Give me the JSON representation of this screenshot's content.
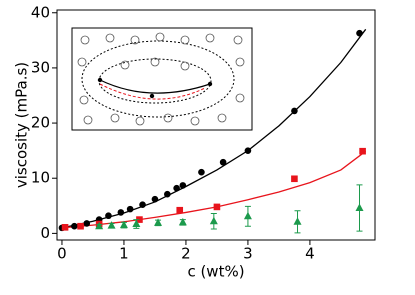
{
  "chart_data": {
    "type": "scatter",
    "x_label": "c (wt%)",
    "y_label": "viscosity (mPa.s)",
    "xlim": [
      -0.08,
      5.05
    ],
    "ylim": [
      -1.2,
      40.5
    ],
    "xticks": [
      0,
      1,
      2,
      3,
      4
    ],
    "yticks": [
      0,
      10,
      20,
      30,
      40
    ],
    "series": [
      {
        "color": "#000000",
        "marker": "circle",
        "x": [
          0,
          0.2,
          0.4,
          0.6,
          0.75,
          0.95,
          1.1,
          1.3,
          1.5,
          1.7,
          1.85,
          1.95,
          2.25,
          2.6,
          3.0,
          3.75,
          4.8
        ],
        "values": [
          1,
          1.3,
          1.8,
          2.5,
          3.2,
          3.8,
          4.4,
          5.2,
          6.2,
          7.1,
          8.2,
          8.7,
          11.1,
          12.9,
          15,
          22.2,
          36.3
        ]
      },
      {
        "color": "#e8141c",
        "marker": "square",
        "x": [
          0.05,
          0.3,
          0.6,
          1.25,
          1.9,
          2.5,
          3.75,
          4.85
        ],
        "values": [
          1.1,
          1.3,
          1.7,
          2.5,
          4.2,
          4.8,
          9.9,
          14.9
        ]
      },
      {
        "color": "#1c9a4c",
        "marker": "triangle",
        "x": [
          0.6,
          0.8,
          1.0,
          1.2,
          1.55,
          1.95,
          2.45,
          3.0,
          3.8,
          4.8
        ],
        "values": [
          1.3,
          1.4,
          1.5,
          1.7,
          1.9,
          2.0,
          2.2,
          3.1,
          2.1,
          4.6
        ],
        "errors": [
          0.3,
          0.4,
          0.5,
          0.8,
          0.5,
          0.5,
          1.4,
          1.8,
          2.0,
          4.2
        ]
      },
      {
        "color": "#000000",
        "marker": "line",
        "x": [
          0,
          0.5,
          1,
          1.5,
          2,
          2.5,
          3,
          3.5,
          4,
          4.5,
          4.9
        ],
        "values": [
          1,
          2.2,
          3.7,
          5.7,
          8.5,
          11.5,
          15,
          19.5,
          24.8,
          31,
          37
        ]
      },
      {
        "color": "#e8141c",
        "marker": "line",
        "x": [
          0,
          0.5,
          1,
          1.5,
          2,
          2.5,
          3,
          3.5,
          4,
          4.5,
          4.9
        ],
        "values": [
          1,
          1.5,
          2.1,
          2.9,
          3.8,
          4.8,
          6.1,
          7.5,
          9.2,
          11.5,
          14.9
        ]
      }
    ]
  }
}
